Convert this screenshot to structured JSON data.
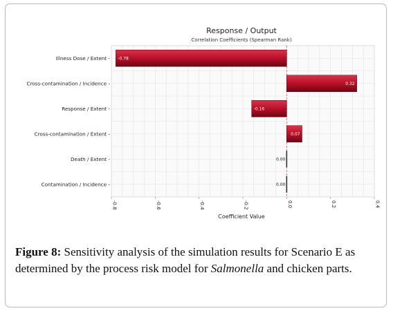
{
  "chart_data": {
    "type": "bar",
    "orientation": "horizontal",
    "title": "Response / Output",
    "subtitle": "Correlation Coefficients (Spearman Rank)",
    "xlabel": "Coefficient Value",
    "categories": [
      "Illness Dose / Extent",
      "Cross-contamination / Incidence",
      "Response / Extent",
      "Cross-contamination / Extent",
      "Death / Extent",
      "Contamination / Incidence"
    ],
    "values": [
      -0.78,
      0.32,
      -0.16,
      0.07,
      0.0,
      0.0
    ],
    "data_labels": [
      "-0.78",
      "0.32",
      "-0.16",
      "0.07",
      "0.00",
      "0.00"
    ],
    "xlim": [
      -0.8,
      0.4
    ],
    "x_ticks": [
      "-0.8",
      "-0.6",
      "-0.4",
      "-0.2",
      "0.0",
      "0.2",
      "0.4"
    ],
    "grid": true,
    "bar_color": "#b81028",
    "zero_line_color": "#e05a6a"
  },
  "caption": {
    "figure_label": "Figure 8:",
    "text_before": " Sensitivity analysis of the simulation results for Scenario E as determined by the process risk model for ",
    "species": "Salmonella",
    "text_after": " and chicken parts."
  }
}
